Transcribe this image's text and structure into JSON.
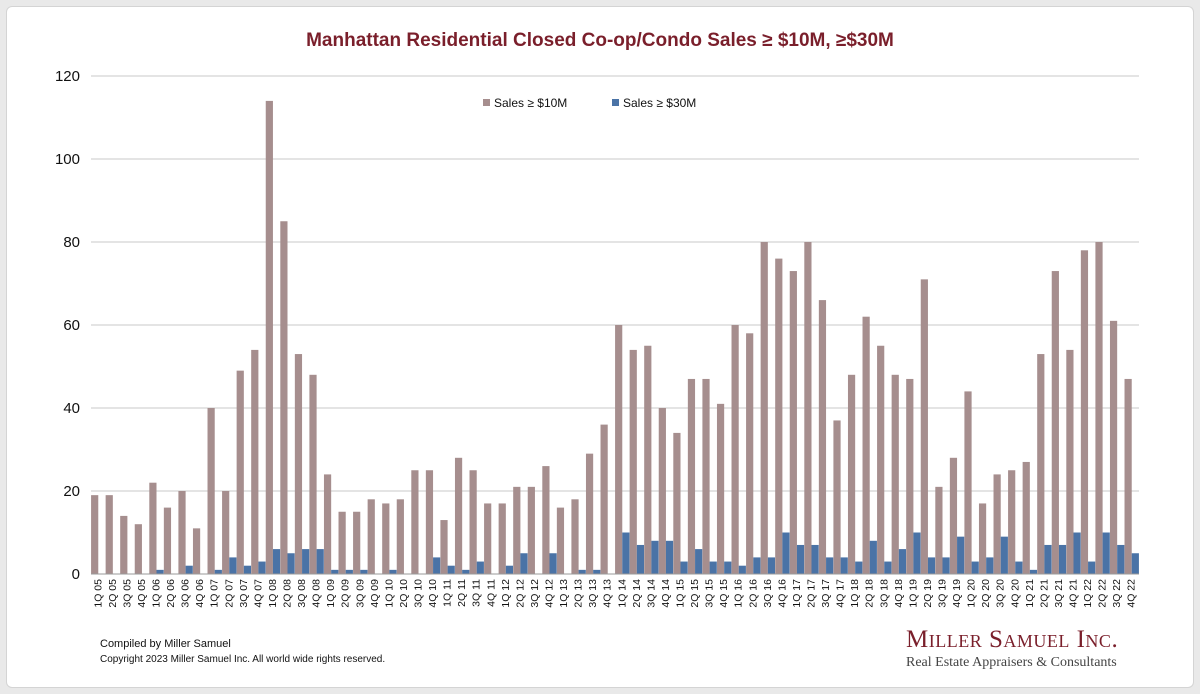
{
  "colors": {
    "title": "#7a1f2b",
    "s10": "#a68e8e",
    "s30": "#4a73a6",
    "grid": "#c8c8c8",
    "brand": "#7a1f2b"
  },
  "footer": {
    "compiled": "Compiled by Miller Samuel",
    "copyright": "Copyright 2023 Miller Samuel Inc.  All world wide rights reserved."
  },
  "brand": {
    "name": "Miller Samuel Inc.",
    "tagline": "Real Estate Appraisers & Consultants"
  },
  "chart_data": {
    "type": "bar",
    "title": "Manhattan Residential Closed Co-op/Condo Sales ≥ $10M, ≥$30M",
    "xlabel": "",
    "ylabel": "",
    "ylim": [
      0,
      120
    ],
    "yticks": [
      0,
      20,
      40,
      60,
      80,
      100,
      120
    ],
    "grid": true,
    "legend_position": "top-center",
    "categories": [
      "1Q 05",
      "2Q 05",
      "3Q 05",
      "4Q 05",
      "1Q 06",
      "2Q 06",
      "3Q 06",
      "4Q 06",
      "1Q 07",
      "2Q 07",
      "3Q 07",
      "4Q 07",
      "1Q 08",
      "2Q 08",
      "3Q 08",
      "4Q 08",
      "1Q 09",
      "2Q 09",
      "3Q 09",
      "4Q 09",
      "1Q 10",
      "2Q 10",
      "3Q 10",
      "4Q 10",
      "1Q 11",
      "2Q 11",
      "3Q 11",
      "4Q 11",
      "1Q 12",
      "2Q 12",
      "3Q 12",
      "4Q 12",
      "1Q 13",
      "2Q 13",
      "3Q 13",
      "4Q 13",
      "1Q 14",
      "2Q 14",
      "3Q 14",
      "4Q 14",
      "1Q 15",
      "2Q 15",
      "3Q 15",
      "4Q 15",
      "1Q 16",
      "2Q 16",
      "3Q 16",
      "4Q 16",
      "1Q 17",
      "2Q 17",
      "3Q 17",
      "4Q 17",
      "1Q 18",
      "2Q 18",
      "3Q 18",
      "4Q 18",
      "1Q 19",
      "2Q 19",
      "3Q 19",
      "4Q 19",
      "1Q 20",
      "2Q 20",
      "3Q 20",
      "4Q 20",
      "1Q 21",
      "2Q 21",
      "3Q 21",
      "4Q 21",
      "1Q 22",
      "2Q 22",
      "3Q 22",
      "4Q 22"
    ],
    "series": [
      {
        "name": "Sales ≥ $10M",
        "values": [
          19,
          19,
          14,
          12,
          22,
          16,
          20,
          11,
          40,
          20,
          49,
          54,
          114,
          85,
          53,
          48,
          24,
          15,
          15,
          18,
          17,
          18,
          25,
          25,
          13,
          28,
          25,
          17,
          17,
          21,
          21,
          26,
          16,
          18,
          29,
          36,
          60,
          54,
          55,
          40,
          34,
          47,
          47,
          41,
          60,
          58,
          80,
          76,
          73,
          80,
          66,
          37,
          48,
          62,
          55,
          48,
          47,
          71,
          21,
          28,
          44,
          17,
          24,
          25,
          27,
          53,
          73,
          54,
          78,
          80,
          61,
          47
        ]
      },
      {
        "name": "Sales ≥ $30M",
        "values": [
          0,
          0,
          0,
          0,
          1,
          0,
          2,
          0,
          1,
          4,
          2,
          3,
          6,
          5,
          6,
          6,
          1,
          1,
          1,
          0,
          1,
          0,
          0,
          4,
          2,
          1,
          3,
          0,
          2,
          5,
          0,
          5,
          0,
          1,
          1,
          0,
          10,
          7,
          8,
          8,
          3,
          6,
          3,
          3,
          2,
          4,
          4,
          10,
          7,
          7,
          4,
          4,
          3,
          8,
          3,
          6,
          10,
          4,
          4,
          9,
          3,
          4,
          9,
          3,
          1,
          7,
          7,
          10,
          3,
          10,
          7,
          5
        ]
      }
    ]
  }
}
